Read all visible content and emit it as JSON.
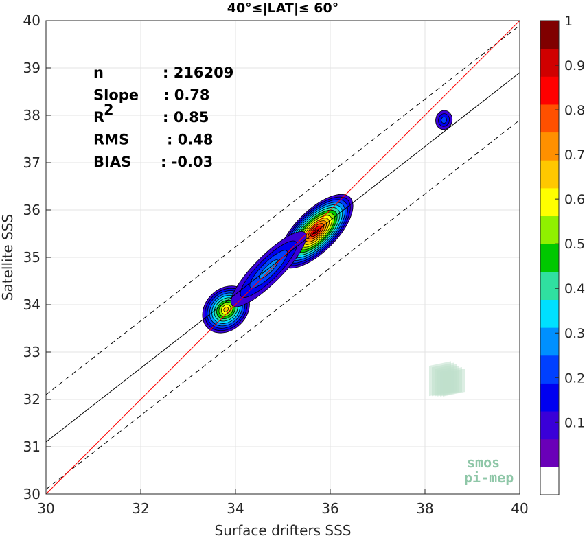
{
  "chart_data": {
    "type": "heatmap",
    "title": "40°≤|LAT|≤ 60°",
    "xlabel": "Surface drifters SSS",
    "ylabel": "Satellite SSS",
    "xlim": [
      30,
      40
    ],
    "ylim": [
      30,
      40
    ],
    "xticks": [
      "30",
      "32",
      "34",
      "36",
      "38",
      "40"
    ],
    "yticks": [
      "30",
      "31",
      "32",
      "33",
      "34",
      "35",
      "36",
      "37",
      "38",
      "39",
      "40"
    ],
    "grid": true,
    "stats": [
      {
        "key": "n",
        "value": ": 216209"
      },
      {
        "key": "Slope",
        "value": ": 0.78"
      },
      {
        "key": "R",
        "sup": "2",
        "value": ": 0.85"
      },
      {
        "key": "RMS",
        "value": ": 0.48"
      },
      {
        "key": "BIAS",
        "value": ": -0.03"
      }
    ],
    "lines": {
      "one_to_one": {
        "slope": 1,
        "intercept": 0,
        "color": "#ff0000"
      },
      "fit": {
        "slope": 0.78,
        "intercept": 7.7,
        "color": "#000000"
      },
      "fit_band_offset": 1.0
    },
    "colorbar": {
      "ticks": [
        "0.1",
        "0.2",
        "0.3",
        "0.4",
        "0.5",
        "0.6",
        "0.7",
        "0.8",
        "0.9",
        "1"
      ],
      "levels": 14,
      "colors": [
        "#ffffff",
        "#6a00b8",
        "#3a00d8",
        "#0000f0",
        "#0040ff",
        "#0090ff",
        "#00e0ff",
        "#30e0a0",
        "#00c800",
        "#90f000",
        "#ffff00",
        "#ffc800",
        "#ff9000",
        "#ff5000",
        "#ff0000",
        "#d00000",
        "#800000"
      ]
    },
    "density_peaks": [
      {
        "x": 33.8,
        "y": 33.9,
        "peak": 0.72
      },
      {
        "x": 35.7,
        "y": 35.55,
        "peak": 1.0
      },
      {
        "x": 34.7,
        "y": 34.75,
        "peak": 0.26
      },
      {
        "x": 38.4,
        "y": 37.9,
        "peak": 0.24
      }
    ],
    "logo_text": [
      "smos",
      "pi-mep"
    ]
  }
}
